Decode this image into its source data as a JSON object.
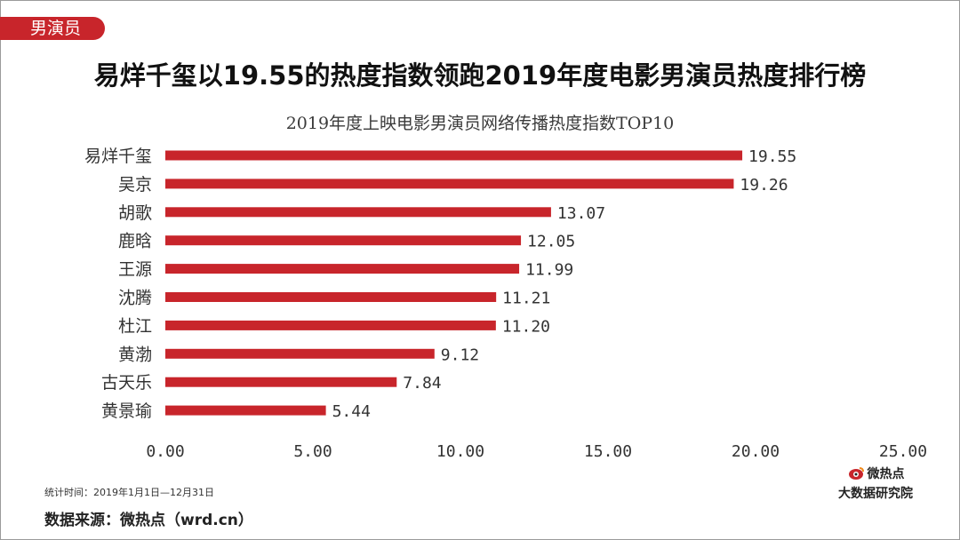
{
  "tag": {
    "label": "男演员"
  },
  "headline": "易烊千玺以19.55的热度指数领跑2019年度电影男演员热度排行榜",
  "colors": {
    "accent": "#c8252b",
    "bar": "#c8252b"
  },
  "chart_data": {
    "type": "bar",
    "orientation": "horizontal",
    "title": "2019年度上映电影男演员网络传播热度指数TOP10",
    "categories": [
      "易烊千玺",
      "吴京",
      "胡歌",
      "鹿晗",
      "王源",
      "沈腾",
      "杜江",
      "黄渤",
      "古天乐",
      "黄景瑜"
    ],
    "values": [
      19.55,
      19.26,
      13.07,
      12.05,
      11.99,
      11.21,
      11.2,
      9.12,
      7.84,
      5.44
    ],
    "value_labels": [
      "19.55",
      "19.26",
      "13.07",
      "12.05",
      "11.99",
      "11.21",
      "11.20",
      "9.12",
      "7.84",
      "5.44"
    ],
    "xlim": [
      0,
      25
    ],
    "xticks": [
      "0.00",
      "5.00",
      "10.00",
      "15.00",
      "20.00",
      "25.00"
    ],
    "xtick_values": [
      0,
      5,
      10,
      15,
      20,
      25
    ],
    "grid": false,
    "xlabel": "",
    "ylabel": ""
  },
  "footer": {
    "stat_time": "统计时间：2019年1月1日—12月31日",
    "source": "数据来源：微热点（wrd.cn）"
  },
  "brand": {
    "icon": "eye-logo-icon",
    "name": "微热点",
    "sub": "大数据研究院"
  }
}
